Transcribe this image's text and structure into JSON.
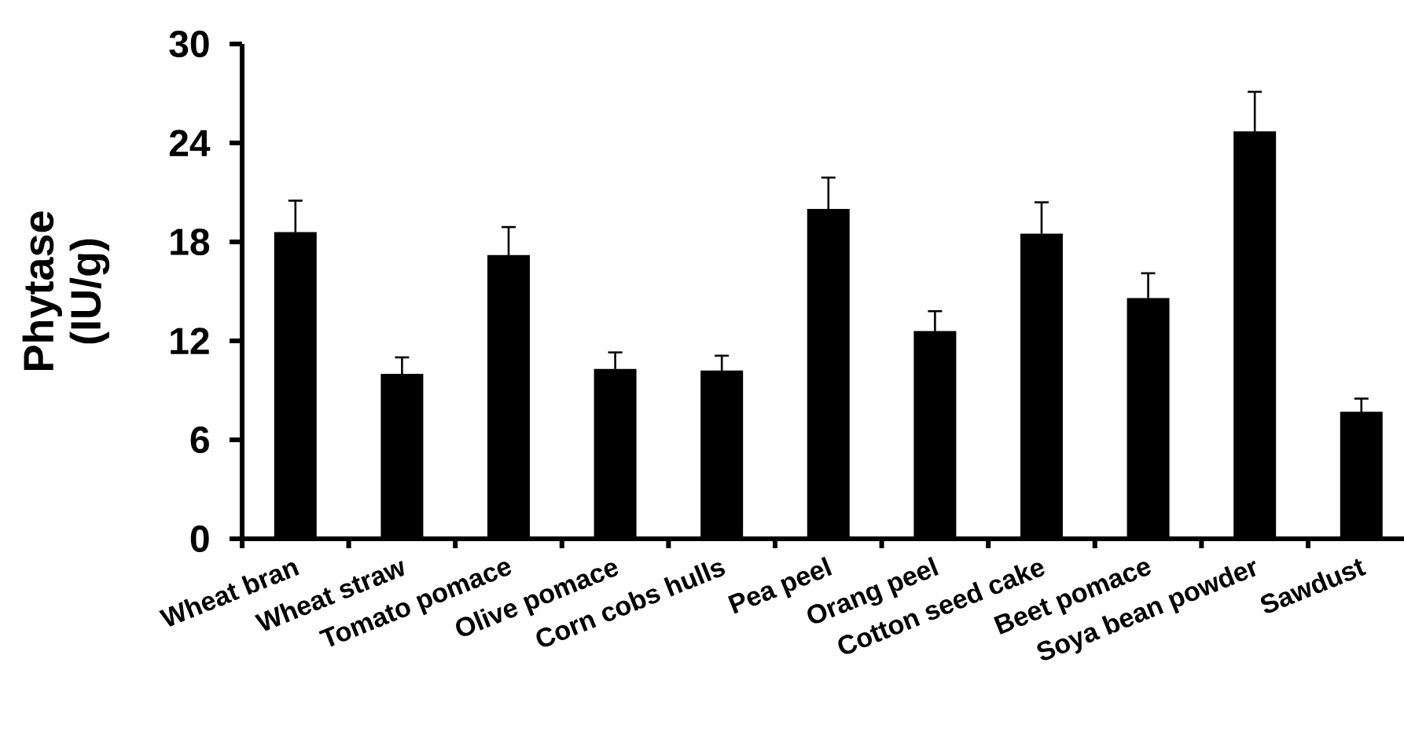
{
  "chart_data": {
    "type": "bar",
    "ylabel": "Phytase (IU/g)",
    "categories": [
      "Wheat bran",
      "Wheat straw",
      "Tomato pomace",
      "Olive pomace",
      "Corn cobs hulls",
      "Pea peel",
      "Orang peel",
      "Cotton seed cake",
      "Beet pomace",
      "Soya bean powder",
      "Sawdust"
    ],
    "values": [
      18.6,
      10.0,
      17.2,
      10.3,
      10.2,
      20.0,
      12.6,
      18.5,
      14.6,
      24.7,
      7.7
    ],
    "errors": [
      1.9,
      1.0,
      1.7,
      1.0,
      0.9,
      1.9,
      1.2,
      1.9,
      1.5,
      2.4,
      0.8
    ],
    "color": "#000000",
    "ylim": [
      0,
      30
    ],
    "yticks": [
      0,
      6,
      12,
      18,
      24,
      30
    ]
  }
}
